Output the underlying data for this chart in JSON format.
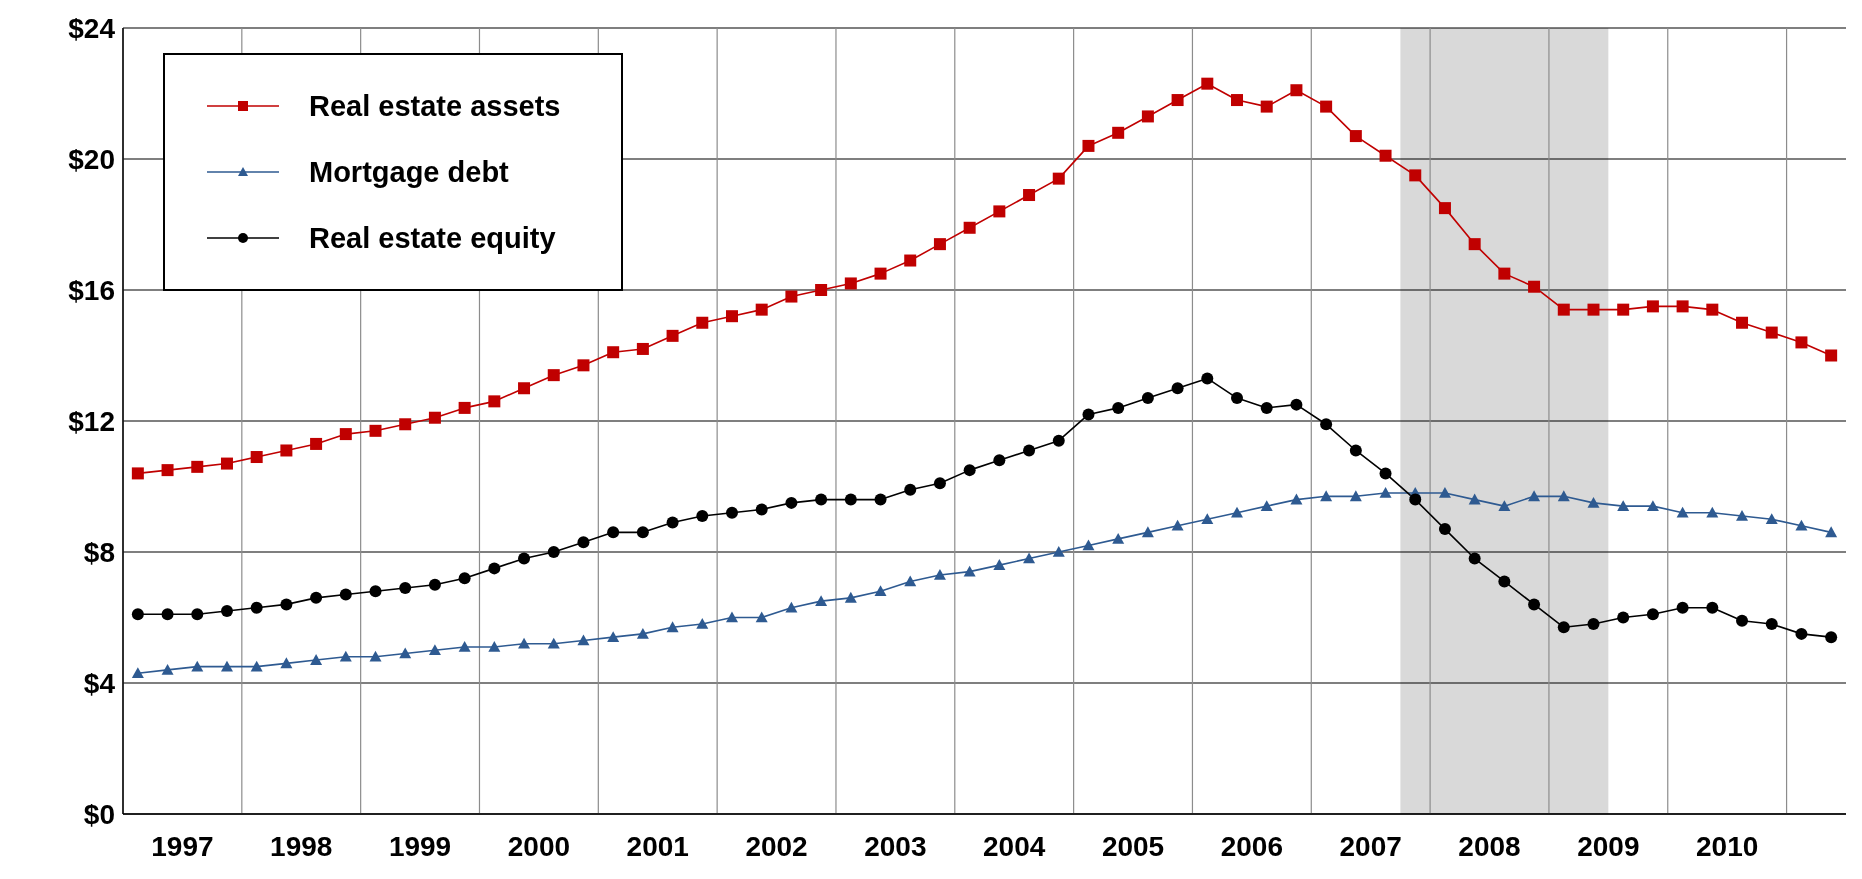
{
  "chart_data": {
    "type": "line",
    "x": [
      1997.125,
      1997.375,
      1997.625,
      1997.875,
      1998.125,
      1998.375,
      1998.625,
      1998.875,
      1999.125,
      1999.375,
      1999.625,
      1999.875,
      2000.125,
      2000.375,
      2000.625,
      2000.875,
      2001.125,
      2001.375,
      2001.625,
      2001.875,
      2002.125,
      2002.375,
      2002.625,
      2002.875,
      2003.125,
      2003.375,
      2003.625,
      2003.875,
      2004.125,
      2004.375,
      2004.625,
      2004.875,
      2005.125,
      2005.375,
      2005.625,
      2005.875,
      2006.125,
      2006.375,
      2006.625,
      2006.875,
      2007.125,
      2007.375,
      2007.625,
      2007.875,
      2008.125,
      2008.375,
      2008.625,
      2008.875,
      2009.125,
      2009.375,
      2009.625,
      2009.875,
      2010.125,
      2010.375,
      2010.625,
      2010.875,
      2011.125,
      2011.375
    ],
    "series": [
      {
        "name": "Real estate assets",
        "color": "#c00000",
        "marker": "square",
        "values": [
          10.4,
          10.5,
          10.6,
          10.7,
          10.9,
          11.1,
          11.3,
          11.6,
          11.7,
          11.9,
          12.1,
          12.4,
          12.6,
          13.0,
          13.4,
          13.7,
          14.1,
          14.2,
          14.6,
          15.0,
          15.2,
          15.4,
          15.8,
          16.0,
          16.2,
          16.5,
          16.9,
          17.4,
          17.9,
          18.4,
          18.9,
          19.4,
          20.4,
          20.8,
          21.3,
          21.8,
          22.3,
          21.8,
          21.6,
          22.1,
          21.6,
          20.7,
          20.1,
          19.5,
          18.5,
          17.4,
          16.5,
          16.1,
          15.4,
          15.4,
          15.4,
          15.5,
          15.5,
          15.4,
          15.0,
          14.7,
          14.4,
          14.0
        ]
      },
      {
        "name": "Mortgage debt",
        "color": "#2e5a91",
        "marker": "triangle",
        "values": [
          4.3,
          4.4,
          4.5,
          4.5,
          4.5,
          4.6,
          4.7,
          4.8,
          4.8,
          4.9,
          5.0,
          5.1,
          5.1,
          5.2,
          5.2,
          5.3,
          5.4,
          5.5,
          5.7,
          5.8,
          6.0,
          6.0,
          6.3,
          6.5,
          6.6,
          6.8,
          7.1,
          7.3,
          7.4,
          7.6,
          7.8,
          8.0,
          8.2,
          8.4,
          8.6,
          8.8,
          9.0,
          9.2,
          9.4,
          9.6,
          9.7,
          9.7,
          9.8,
          9.8,
          9.8,
          9.6,
          9.4,
          9.7,
          9.7,
          9.5,
          9.4,
          9.4,
          9.2,
          9.2,
          9.1,
          9.0,
          8.8,
          8.6
        ]
      },
      {
        "name": "Real estate equity",
        "color": "#000000",
        "marker": "circle",
        "values": [
          6.1,
          6.1,
          6.1,
          6.2,
          6.3,
          6.4,
          6.6,
          6.7,
          6.8,
          6.9,
          7.0,
          7.2,
          7.5,
          7.8,
          8.0,
          8.3,
          8.6,
          8.6,
          8.9,
          9.1,
          9.2,
          9.3,
          9.5,
          9.6,
          9.6,
          9.6,
          9.9,
          10.1,
          10.5,
          10.8,
          11.1,
          11.4,
          12.2,
          12.4,
          12.7,
          13.0,
          13.3,
          12.7,
          12.4,
          12.5,
          11.9,
          11.1,
          10.4,
          9.6,
          8.7,
          7.8,
          7.1,
          6.4,
          5.7,
          5.8,
          6.0,
          6.1,
          6.3,
          6.3,
          5.9,
          5.8,
          5.5,
          5.4
        ]
      }
    ],
    "xlim": [
      1997,
      2011.5
    ],
    "xticks": [
      {
        "value": 1997,
        "label": null
      },
      {
        "value": 1997.5,
        "label": "1997"
      },
      {
        "value": 1998,
        "label": null
      },
      {
        "value": 1998.5,
        "label": "1998"
      },
      {
        "value": 1999,
        "label": null
      },
      {
        "value": 1999.5,
        "label": "1999"
      },
      {
        "value": 2000,
        "label": null
      },
      {
        "value": 2000.5,
        "label": "2000"
      },
      {
        "value": 2001,
        "label": null
      },
      {
        "value": 2001.5,
        "label": "2001"
      },
      {
        "value": 2002,
        "label": null
      },
      {
        "value": 2002.5,
        "label": "2002"
      },
      {
        "value": 2003,
        "label": null
      },
      {
        "value": 2003.5,
        "label": "2003"
      },
      {
        "value": 2004,
        "label": null
      },
      {
        "value": 2004.5,
        "label": "2004"
      },
      {
        "value": 2005,
        "label": null
      },
      {
        "value": 2005.5,
        "label": "2005"
      },
      {
        "value": 2006,
        "label": null
      },
      {
        "value": 2006.5,
        "label": "2006"
      },
      {
        "value": 2007,
        "label": null
      },
      {
        "value": 2007.5,
        "label": "2007"
      },
      {
        "value": 2008,
        "label": null
      },
      {
        "value": 2008.5,
        "label": "2008"
      },
      {
        "value": 2009,
        "label": null
      },
      {
        "value": 2009.5,
        "label": "2009"
      },
      {
        "value": 2010,
        "label": null
      },
      {
        "value": 2010.5,
        "label": "2010"
      },
      {
        "value": 2011,
        "label": null
      }
    ],
    "ylim": [
      0,
      24
    ],
    "yticks": [
      {
        "value": 0,
        "label": "$0"
      },
      {
        "value": 4,
        "label": "$4"
      },
      {
        "value": 8,
        "label": "$8"
      },
      {
        "value": 12,
        "label": "$12"
      },
      {
        "value": 16,
        "label": "$16"
      },
      {
        "value": 20,
        "label": "$20"
      },
      {
        "value": 24,
        "label": "$24"
      }
    ],
    "bands": [
      {
        "axis": "x",
        "from": 2007.75,
        "to": 2009.5,
        "label": null,
        "color": "#d9d9d9"
      }
    ],
    "grid": true,
    "legend": "top left",
    "line_style": "solid"
  }
}
